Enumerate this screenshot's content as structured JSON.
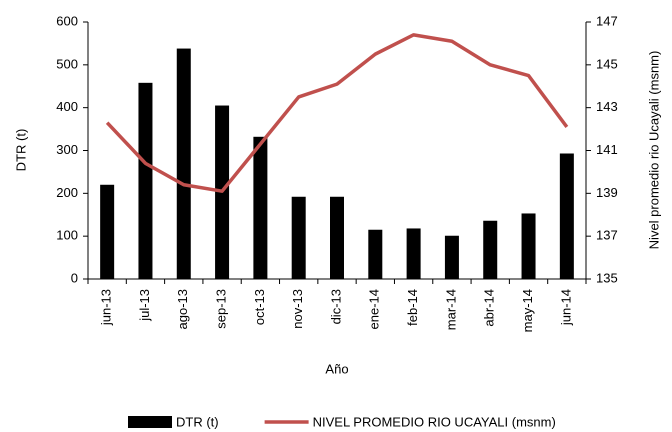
{
  "chart_data": {
    "type": "bar",
    "categories": [
      "jun-13",
      "jul-13",
      "ago-13",
      "sep-13",
      "oct-13",
      "nov-13",
      "dic-13",
      "ene-14",
      "feb-14",
      "mar-14",
      "abr-14",
      "may-14",
      "jun-14"
    ],
    "series": [
      {
        "name": "DTR (t)",
        "type": "bar",
        "color": "#000000",
        "values": [
          220,
          458,
          538,
          405,
          332,
          192,
          192,
          115,
          118,
          101,
          136,
          153,
          293
        ]
      },
      {
        "name": "NIVEL PROMEDIO RIO UCAYALI (msnm)",
        "type": "line",
        "axis": "y2",
        "color": "#c0504d",
        "values": [
          142.3,
          140.4,
          139.4,
          139.1,
          141.3,
          143.5,
          144.1,
          145.5,
          146.4,
          146.1,
          145.0,
          144.5,
          142.1
        ]
      }
    ],
    "xlabel": "Año",
    "ylabel": "DTR (t)",
    "y2label": "Nivel promedio rio Ucayali (msnm)",
    "ylim": [
      0,
      600
    ],
    "yticks": [
      0,
      100,
      200,
      300,
      400,
      500,
      600
    ],
    "y2lim": [
      135,
      147
    ],
    "y2ticks": [
      135,
      137,
      139,
      141,
      143,
      145,
      147
    ],
    "legend": "bottom"
  }
}
